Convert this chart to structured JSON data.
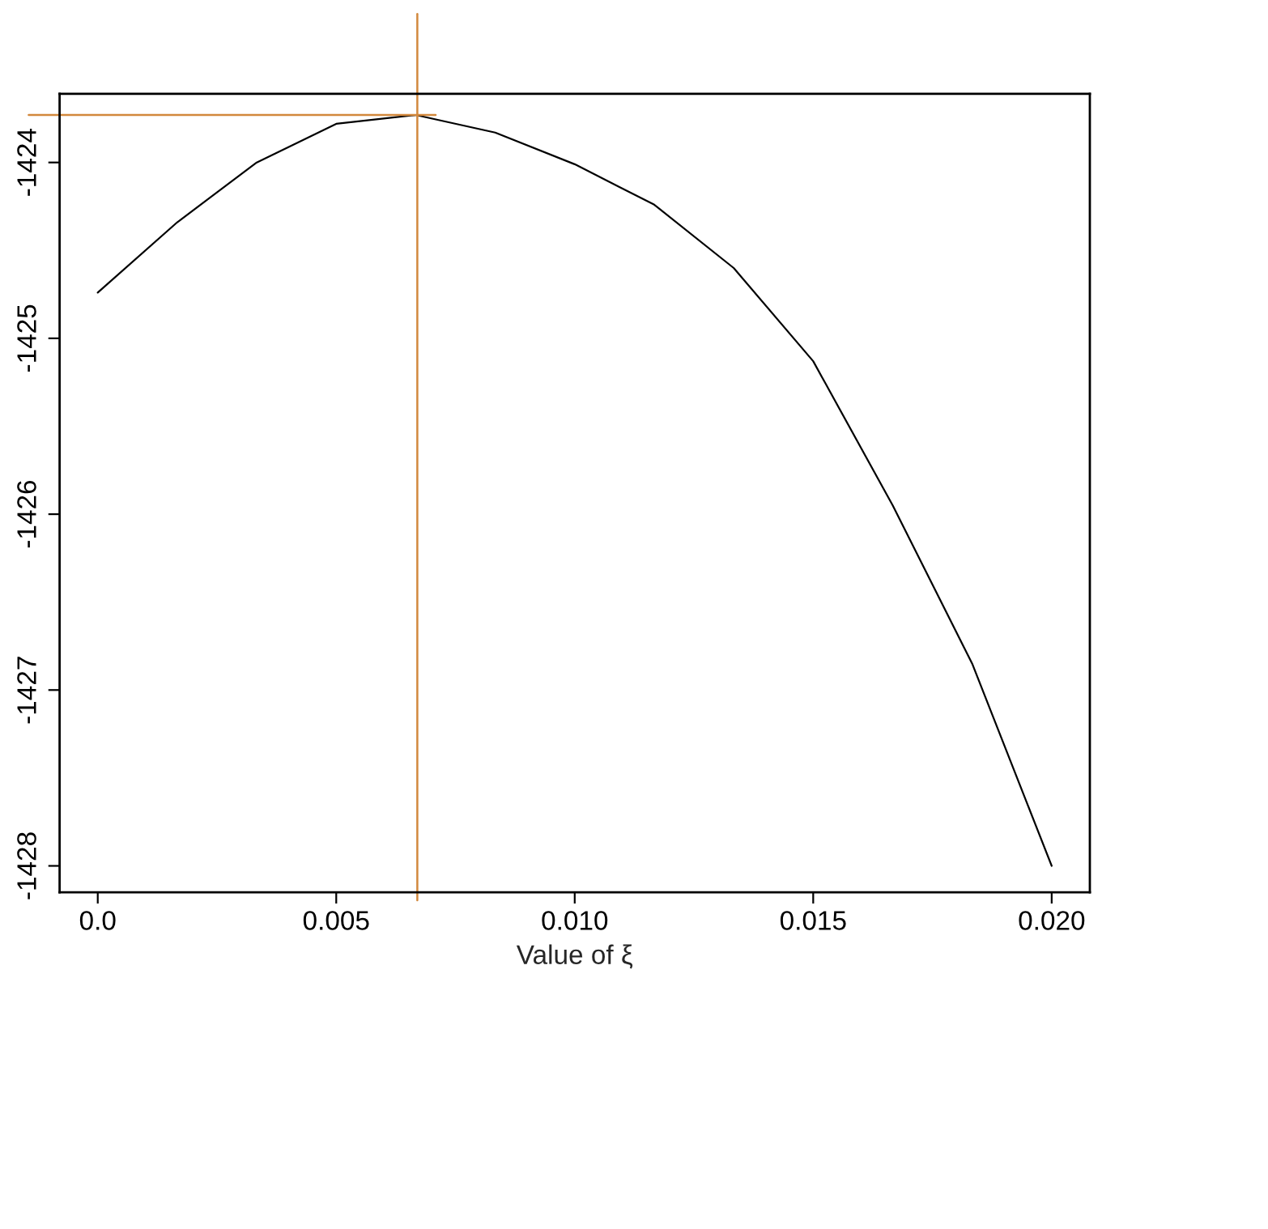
{
  "chart_data": {
    "type": "line",
    "xlabel": "Value of ξ",
    "x": [
      0,
      0.001667,
      0.003333,
      0.005,
      0.006667,
      0.008333,
      0.01,
      0.011667,
      0.013333,
      0.015,
      0.016667,
      0.018333,
      0.02
    ],
    "series": [
      {
        "color": "#000000",
        "values": [
          -1424.74,
          -1424.34,
          -1424.0,
          -1423.78,
          -1423.73,
          -1423.83,
          -1424.01,
          -1424.24,
          -1424.6,
          -1425.13,
          -1425.95,
          -1426.85,
          -1428.0
        ]
      }
    ],
    "xlim": [
      -0.0008,
      0.0208
    ],
    "ylim": [
      -1428.15,
      -1423.61
    ],
    "xticks": [
      {
        "value": 0,
        "label": "0.0"
      },
      0.005,
      {
        "value": 0.01,
        "label": "0.010"
      },
      0.015,
      {
        "value": 0.02,
        "label": "0.020"
      }
    ],
    "yticks": [
      -1428,
      -1427,
      -1426,
      -1425,
      -1424
    ],
    "ref_lines": [
      {
        "axis": "x",
        "value": 0.0067,
        "color": "#d2883c"
      },
      {
        "axis": "y",
        "value": -1423.73,
        "color": "#d2883c"
      }
    ],
    "line_style": "solid"
  }
}
